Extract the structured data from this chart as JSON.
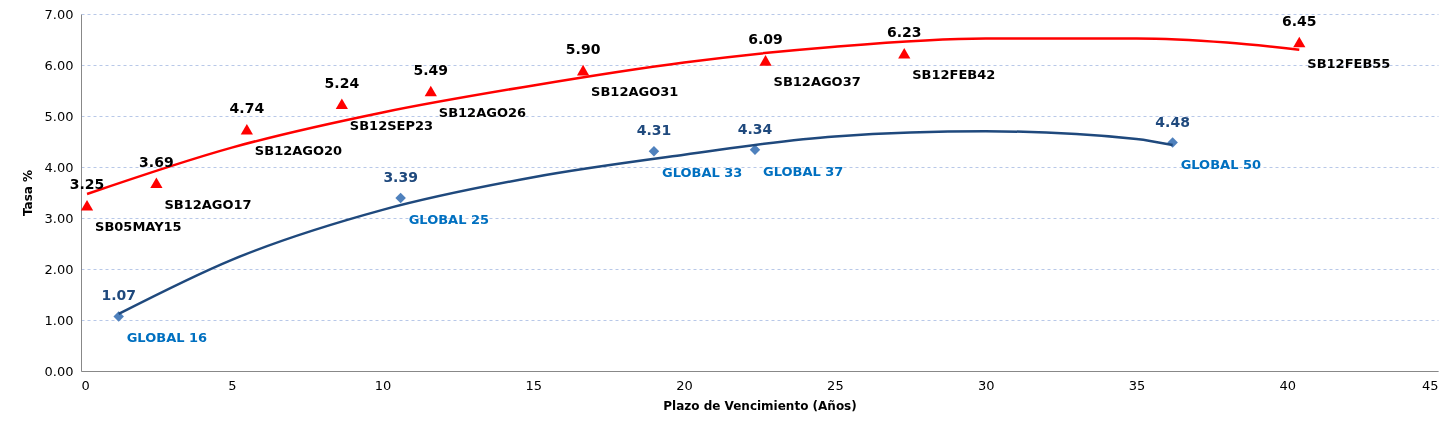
{
  "chart_data": {
    "type": "scatter",
    "xlabel": "Plazo de Vencimiento  (Años)",
    "ylabel": "Tasa %",
    "xlim": [
      0,
      45
    ],
    "xticks": [
      0,
      5,
      10,
      15,
      20,
      25,
      30,
      35,
      40,
      45
    ],
    "ylim": [
      0,
      7
    ],
    "yticks": [
      {
        "value": 0,
        "label": "0.00"
      },
      {
        "value": 1,
        "label": "1.00"
      },
      {
        "value": 2,
        "label": "2.00"
      },
      {
        "value": 3,
        "label": "3.00"
      },
      {
        "value": 4,
        "label": "4.00"
      },
      {
        "value": 5,
        "label": "5.00"
      },
      {
        "value": 6,
        "label": "6.00"
      },
      {
        "value": 7,
        "label": "7.00"
      }
    ],
    "grid": "y",
    "series": [
      {
        "marker": "triangle",
        "color": "#ff0000",
        "x": [
          0.2,
          2.5,
          5.5,
          8.65,
          11.6,
          16.65,
          22.7,
          27.3,
          40.4
        ],
        "values": [
          3.25,
          3.69,
          4.74,
          5.24,
          5.49,
          5.9,
          6.09,
          6.23,
          6.45
        ],
        "value_labels": [
          "3.25",
          "3.69",
          "4.74",
          "5.24",
          "5.49",
          "5.90",
          "6.09",
          "6.23",
          "6.45"
        ]
      },
      {
        "marker": "diamond",
        "color": "#4f81bd",
        "x": [
          1.25,
          10.6,
          19.0,
          22.35,
          36.2
        ],
        "values": [
          1.07,
          3.39,
          4.31,
          4.34,
          4.48
        ],
        "value_labels": [
          "1.07",
          "3.39",
          "4.31",
          "4.34",
          "4.48"
        ]
      },
      {
        "type": "line",
        "marker": "none",
        "color": "#ff0000",
        "x": [
          0.2,
          5,
          10,
          15,
          20,
          25,
          30,
          35,
          38,
          40.4
        ],
        "values": [
          3.47,
          4.38,
          5.07,
          5.6,
          6.05,
          6.36,
          6.52,
          6.52,
          6.44,
          6.3
        ]
      },
      {
        "type": "line",
        "marker": "none",
        "color": "#1f497d",
        "x": [
          1.25,
          5,
          10,
          15,
          20,
          25,
          30,
          35,
          36.2
        ],
        "values": [
          1.12,
          2.18,
          3.16,
          3.8,
          4.24,
          4.6,
          4.7,
          4.55,
          4.43
        ]
      }
    ],
    "annotations": [
      {
        "text": "SB05MAY15",
        "x": 0.2,
        "y": 3.25
      },
      {
        "text": "SB12AGO17",
        "x": 2.5,
        "y": 3.69
      },
      {
        "text": "SB12AGO20",
        "x": 5.5,
        "y": 4.74
      },
      {
        "text": "SB12SEP23",
        "x": 8.65,
        "y": 5.24
      },
      {
        "text": "SB12AGO26",
        "x": 11.6,
        "y": 5.49
      },
      {
        "text": "SB12AGO31",
        "x": 16.65,
        "y": 5.9
      },
      {
        "text": "SB12AGO37",
        "x": 22.7,
        "y": 6.09
      },
      {
        "text": "SB12FEB42",
        "x": 27.3,
        "y": 6.23
      },
      {
        "text": "SB12FEB55",
        "x": 40.4,
        "y": 6.45
      },
      {
        "text": "GLOBAL 16",
        "x": 1.25,
        "y": 1.07
      },
      {
        "text": "GLOBAL 25",
        "x": 10.6,
        "y": 3.39
      },
      {
        "text": "GLOBAL 33",
        "x": 19.0,
        "y": 4.31
      },
      {
        "text": "GLOBAL 37",
        "x": 22.35,
        "y": 4.34
      },
      {
        "text": "GLOBAL 50",
        "x": 36.2,
        "y": 4.48
      }
    ]
  }
}
